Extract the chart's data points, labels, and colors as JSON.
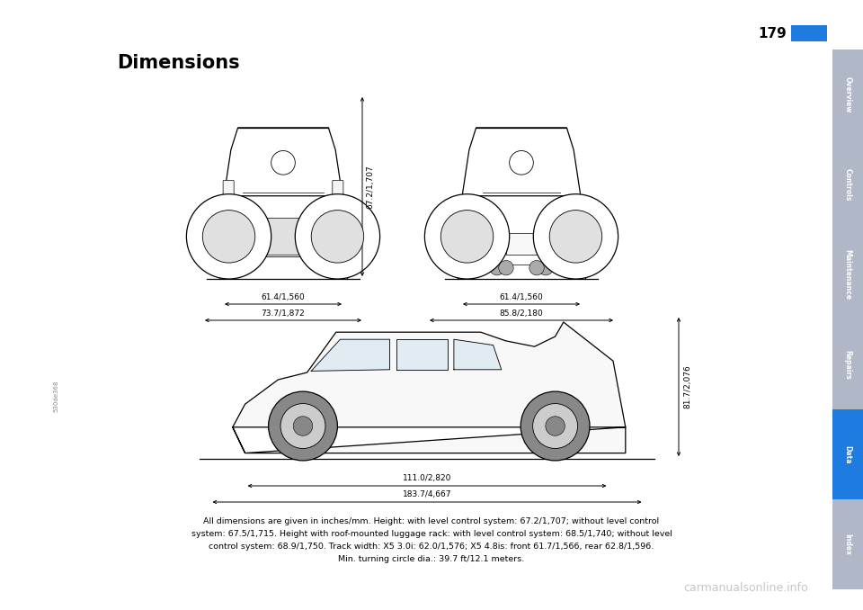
{
  "bg_color": "#ffffff",
  "page_width": 9.6,
  "page_height": 6.78,
  "title": "Dimensions",
  "page_number": "179",
  "sidebar_tabs": [
    "Overview",
    "Controls",
    "Maintenance",
    "Repairs",
    "Data",
    "Index"
  ],
  "sidebar_active": "Data",
  "sidebar_color_active": "#1e7be0",
  "sidebar_color_inactive": "#b0b8c8",
  "watermark": "carmanualsonline.info",
  "watermark_color": "#b8b8b8",
  "front_view_label_inner": "61.4/1,560",
  "front_view_label_outer": "73.7/1,872",
  "rear_view_label_inner": "61.4/1,560",
  "rear_view_label_outer": "85.8/2,180",
  "height_label": "67.2/1,707",
  "side_height_label": "81.7/2,076",
  "side_length_inner": "111.0/2,820",
  "side_length_outer": "183.7/4,667",
  "serial_label": "530de368",
  "caption_line1": "All dimensions are given in inches/mm. Height: with level control system: 67.2/1,707; without level control",
  "caption_line2": "system: 67.5/1,715. Height with roof-mounted luggage rack: with level control system: 68.5/1,740; without level",
  "caption_line3": "control system: 68.9/1,750. Track width: X5 3.0i: 62.0/1,576; X5 4.8is: front 61.7/1,566, rear 62.8/1,596.",
  "caption_line4": "Min. turning circle dia.: 39.7 ft/12.1 meters."
}
